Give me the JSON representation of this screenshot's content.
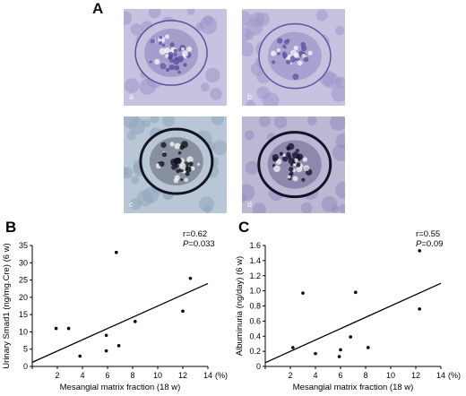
{
  "panel_a": {
    "letter": "A",
    "micrographs": [
      {
        "label": "a",
        "stain": "PAS",
        "bg": "#c7c2df",
        "cell": "#9d96c8",
        "tuft": "#7d71b6",
        "dark": "#5d4f9c"
      },
      {
        "label": "b",
        "stain": "PAS",
        "bg": "#c8c2e0",
        "cell": "#9f98cb",
        "tuft": "#8379ba",
        "dark": "#62559f"
      },
      {
        "label": "c",
        "stain": "PAM",
        "bg": "#b8c6d6",
        "cell": "#8fa5bd",
        "tuft": "#2a2c3a",
        "dark": "#121420"
      },
      {
        "label": "d",
        "stain": "PAM",
        "bg": "#bdb7d4",
        "cell": "#948cbd",
        "tuft": "#3a2f62",
        "dark": "#15112a"
      }
    ]
  },
  "chart_data": [
    {
      "panel": "B",
      "type": "scatter",
      "xlabel": "Mesangial matrix fraction (18 w)",
      "x_unit": "(%)",
      "ylabel": "Urinary Smad1 (ng/mg.Cre) (6 w)",
      "xlim": [
        0,
        14
      ],
      "ylim": [
        0,
        35
      ],
      "xticks": [
        "2",
        "4",
        "6",
        "8",
        "10",
        "12",
        "14"
      ],
      "yticks": [
        "0",
        "5",
        "10",
        "15",
        "20",
        "25",
        "30",
        "35"
      ],
      "stats": {
        "r": "r=0.62",
        "p_label": "P",
        "p_value": "=0.033"
      },
      "points": [
        [
          1.9,
          11
        ],
        [
          2.9,
          11
        ],
        [
          3.8,
          3
        ],
        [
          5.9,
          9
        ],
        [
          5.9,
          4.5
        ],
        [
          6.7,
          33
        ],
        [
          6.9,
          6
        ],
        [
          8.2,
          13
        ],
        [
          12.0,
          16
        ],
        [
          12.6,
          25.5
        ]
      ],
      "fit": [
        [
          0,
          1.2
        ],
        [
          14,
          24
        ]
      ]
    },
    {
      "panel": "C",
      "type": "scatter",
      "xlabel": "Mesangial matrix fraction (18 w)",
      "x_unit": "(%)",
      "ylabel": "Albuminuria (ng/day) (6 w)",
      "xlim": [
        0,
        14
      ],
      "ylim": [
        0,
        1.6
      ],
      "xticks": [
        "2",
        "4",
        "6",
        "8",
        "10",
        "12",
        "14"
      ],
      "yticks": [
        "0",
        "0.2",
        "0.4",
        "0.6",
        "0.8",
        "1.0",
        "1.2",
        "1.4",
        "1.6"
      ],
      "stats": {
        "r": "r=0.55",
        "p_label": "P",
        "p_value": "=0.09"
      },
      "points": [
        [
          2.2,
          0.25
        ],
        [
          3.0,
          0.97
        ],
        [
          4.0,
          0.17
        ],
        [
          5.9,
          0.13
        ],
        [
          6.0,
          0.22
        ],
        [
          6.8,
          0.39
        ],
        [
          7.2,
          0.98
        ],
        [
          8.2,
          0.25
        ],
        [
          12.3,
          0.76
        ],
        [
          12.3,
          1.53
        ]
      ],
      "fit": [
        [
          0,
          0.05
        ],
        [
          14,
          1.1
        ]
      ]
    }
  ]
}
